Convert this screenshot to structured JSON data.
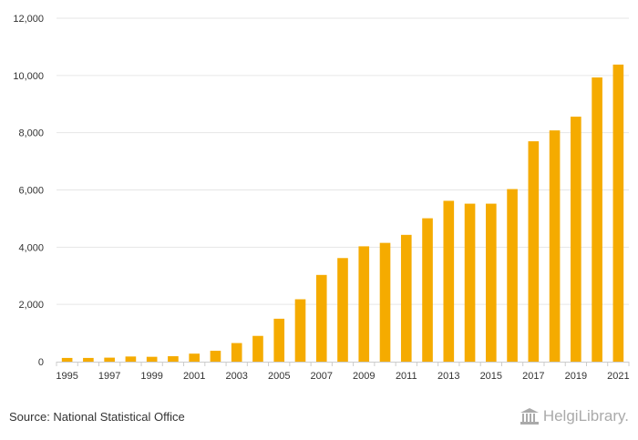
{
  "chart_data": {
    "type": "bar",
    "title": "",
    "xlabel": "",
    "ylabel": "",
    "categories": [
      "1995",
      "1996",
      "1997",
      "1998",
      "1999",
      "2000",
      "2001",
      "2002",
      "2003",
      "2004",
      "2005",
      "2006",
      "2007",
      "2008",
      "2009",
      "2010",
      "2011",
      "2012",
      "2013",
      "2014",
      "2015",
      "2016",
      "2017",
      "2018",
      "2019",
      "2020",
      "2021"
    ],
    "x_tick_labels": [
      "1995",
      "1997",
      "1999",
      "2001",
      "2003",
      "2005",
      "2007",
      "2009",
      "2011",
      "2013",
      "2015",
      "2017",
      "2019",
      "2021"
    ],
    "values": [
      130,
      130,
      140,
      180,
      170,
      190,
      280,
      380,
      650,
      900,
      1500,
      2180,
      3030,
      3620,
      4030,
      4150,
      4430,
      5010,
      5620,
      5520,
      5520,
      6030,
      7700,
      8080,
      8560,
      9930,
      10380
    ],
    "ylim": [
      0,
      12000
    ],
    "y_ticks": [
      0,
      2000,
      4000,
      6000,
      8000,
      10000,
      12000
    ],
    "y_tick_labels": [
      "0",
      "2,000",
      "4,000",
      "6,000",
      "8,000",
      "10,000",
      "12,000"
    ],
    "bar_color": "#f5ab00",
    "grid": true
  },
  "footer": {
    "source": "Source: National Statistical Office",
    "logo_text": "HelgiLibrary."
  }
}
